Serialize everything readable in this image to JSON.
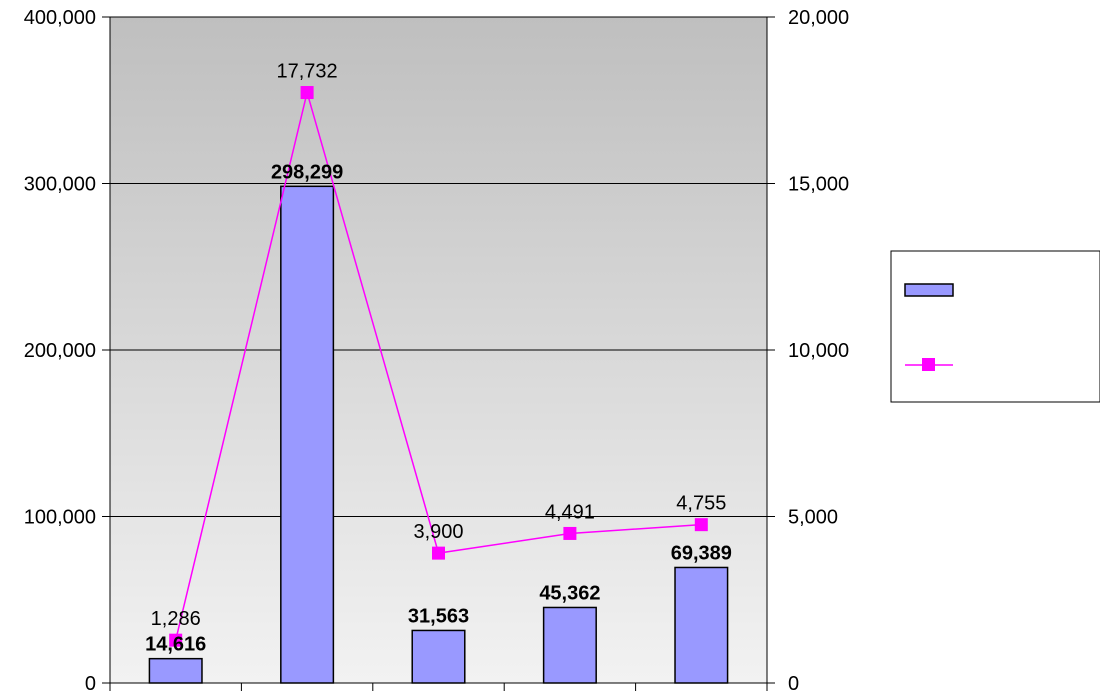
{
  "chart_data": {
    "type": "bar",
    "title": "",
    "categories": [
      "",
      "",
      "",
      "",
      ""
    ],
    "series": [
      {
        "chart_type": "bar",
        "axis": "left",
        "color": "#9999ff",
        "values": [
          14616,
          298299,
          31563,
          45362,
          69389
        ],
        "labels": [
          "14,616",
          "298,299",
          "31,563",
          "45,362",
          "69,389"
        ]
      },
      {
        "chart_type": "line",
        "axis": "right",
        "color": "#ff00ff",
        "marker": "square",
        "values": [
          1286,
          17732,
          3900,
          4491,
          4755
        ],
        "labels": [
          "1,286",
          "17,732",
          "3,900",
          "4,491",
          "4,755"
        ]
      }
    ],
    "y_left": {
      "lim": [
        0,
        400000
      ],
      "ticks": [
        0,
        100000,
        200000,
        300000,
        400000
      ],
      "tick_labels": [
        "0",
        "100,000",
        "200,000",
        "300,000",
        "400,000"
      ]
    },
    "y_right": {
      "lim": [
        0,
        20000
      ],
      "ticks": [
        0,
        5000,
        10000,
        15000,
        20000
      ],
      "tick_labels": [
        "0",
        "5,000",
        "10,000",
        "15,000",
        "20,000"
      ]
    },
    "grid": true,
    "legend": "right",
    "plot_background": "gradient gray to light gray"
  }
}
